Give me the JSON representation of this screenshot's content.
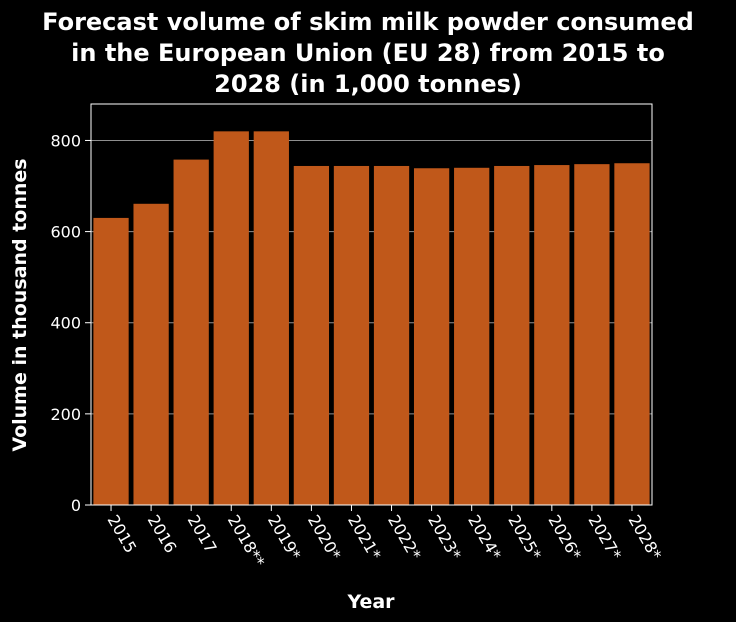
{
  "chart_data": {
    "type": "bar",
    "title_lines": [
      "Forecast volume of skim milk powder consumed",
      "in the European Union (EU 28) from 2015 to",
      "2028 (in 1,000 tonnes)"
    ],
    "xlabel": "Year",
    "ylabel": "Volume in thousand tonnes",
    "categories": [
      "2015",
      "2016",
      "2017",
      "2018**",
      "2019*",
      "2020*",
      "2021*",
      "2022*",
      "2023*",
      "2024*",
      "2025*",
      "2026*",
      "2027*",
      "2028*"
    ],
    "values": [
      630,
      661,
      758,
      820,
      820,
      744,
      744,
      744,
      739,
      740,
      744,
      746,
      748,
      750
    ],
    "ylim": [
      0,
      880
    ],
    "yticks": [
      0,
      200,
      400,
      600,
      800
    ],
    "grid": true,
    "bar_color": "#c0581a",
    "background": "#000000",
    "text_color": "#ffffff",
    "grid_color": "#8f8f8f"
  }
}
